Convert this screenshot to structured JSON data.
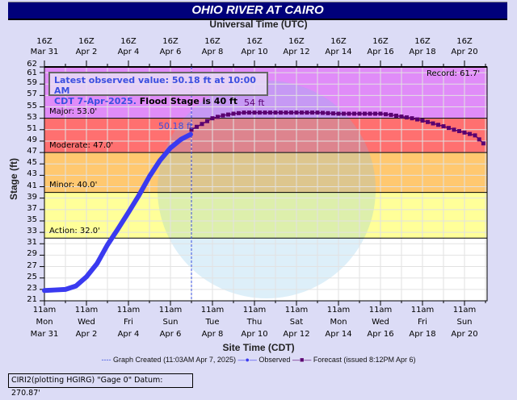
{
  "header": {
    "title": "OHIO RIVER AT CAIRO",
    "top_axis_title": "Universal Time (UTC)"
  },
  "top_ticks": [
    {
      "l1": "16Z",
      "l2": "Mar 31"
    },
    {
      "l1": "16Z",
      "l2": "Apr 2"
    },
    {
      "l1": "16Z",
      "l2": "Apr 4"
    },
    {
      "l1": "16Z",
      "l2": "Apr 6"
    },
    {
      "l1": "16Z",
      "l2": "Apr 8"
    },
    {
      "l1": "16Z",
      "l2": "Apr 10"
    },
    {
      "l1": "16Z",
      "l2": "Apr 12"
    },
    {
      "l1": "16Z",
      "l2": "Apr 14"
    },
    {
      "l1": "16Z",
      "l2": "Apr 16"
    },
    {
      "l1": "16Z",
      "l2": "Apr 18"
    },
    {
      "l1": "16Z",
      "l2": "Apr 20"
    }
  ],
  "bottom_ticks": [
    {
      "l1": "11am",
      "l2": "Mon",
      "l3": "Mar 31"
    },
    {
      "l1": "11am",
      "l2": "Wed",
      "l3": "Apr 2"
    },
    {
      "l1": "11am",
      "l2": "Fri",
      "l3": "Apr 4"
    },
    {
      "l1": "11am",
      "l2": "Sun",
      "l3": "Apr 6"
    },
    {
      "l1": "11am",
      "l2": "Tue",
      "l3": "Apr 8"
    },
    {
      "l1": "11am",
      "l2": "Thu",
      "l3": "Apr 10"
    },
    {
      "l1": "11am",
      "l2": "Sat",
      "l3": "Apr 12"
    },
    {
      "l1": "11am",
      "l2": "Mon",
      "l3": "Apr 14"
    },
    {
      "l1": "11am",
      "l2": "Wed",
      "l3": "Apr 16"
    },
    {
      "l1": "11am",
      "l2": "Fri",
      "l3": "Apr 18"
    },
    {
      "l1": "11am",
      "l2": "Sun",
      "l3": "Apr 20"
    }
  ],
  "info_box": {
    "line1": "Latest observed value: 50.18 ft at 10:00 AM",
    "line2_blue": "CDT 7-Apr-2025.",
    "line2_black": "Flood Stage is 40 ft"
  },
  "annotations": {
    "record": "Record: 61.7'",
    "major": "Major: 53.0'",
    "moderate": "Moderate: 47.0'",
    "minor": "Minor: 40.0'",
    "action": "Action: 32.0'",
    "observed_label": "50.18 ft",
    "forecast_peak_label": "54 ft"
  },
  "legend": {
    "created": "Graph Created (11:03AM Apr 7, 2025)",
    "observed": "Observed",
    "forecast": "Forecast (issued 8:12PM Apr 6)"
  },
  "footer": {
    "text": "CIRI2(plotting HGIRG) \"Gage 0\" Datum: 270.87'"
  },
  "colors": {
    "title_bg": "#00007a",
    "background": "#dcdcf6",
    "major": "#e08cf8",
    "moderate": "#ff7070",
    "minor": "#ffc870",
    "action": "#ffff99",
    "observed": "#3a3af0",
    "forecast": "#5a0070"
  },
  "chart_data": {
    "type": "line",
    "title": "OHIO RIVER AT CAIRO",
    "xlabel": "Site Time (CDT)",
    "x2label": "Universal Time (UTC)",
    "ylabel": "Stage (ft)",
    "ylim": [
      21,
      62
    ],
    "yticks": [
      21,
      23,
      25,
      27,
      29,
      31,
      33,
      35,
      37,
      39,
      41,
      43,
      45,
      47,
      49,
      51,
      53,
      55,
      57,
      59,
      61,
      62
    ],
    "xrange_days_from_mar31_11am": [
      0,
      21
    ],
    "grid": true,
    "flood_categories": {
      "action": 32.0,
      "minor": 40.0,
      "moderate": 47.0,
      "major": 53.0,
      "record": 61.7
    },
    "flood_stage": 40,
    "graph_created_day": 7.0,
    "series": [
      {
        "name": "Observed",
        "x_days": [
          0,
          0.5,
          1,
          1.5,
          2,
          2.5,
          3,
          3.5,
          4,
          4.5,
          5,
          5.5,
          6,
          6.5,
          6.96
        ],
        "values": [
          22.8,
          22.9,
          23.0,
          23.6,
          25.2,
          27.5,
          30.8,
          33.6,
          36.5,
          39.5,
          42.8,
          45.6,
          47.8,
          49.3,
          50.18
        ]
      },
      {
        "name": "Forecast",
        "x_days": [
          7.0,
          7.5,
          8.0,
          8.5,
          9.0,
          9.5,
          10,
          11,
          12,
          13,
          14,
          15,
          16,
          16.5,
          17,
          17.5,
          18,
          18.5,
          19,
          19.5,
          20,
          20.5,
          20.9
        ],
        "values": [
          51.0,
          52.0,
          53.0,
          53.5,
          53.8,
          54.0,
          54.0,
          54.0,
          54.0,
          54.0,
          53.8,
          53.8,
          53.8,
          53.6,
          53.3,
          53.0,
          52.6,
          52.1,
          51.6,
          51.0,
          50.5,
          50.0,
          48.6
        ]
      }
    ]
  }
}
